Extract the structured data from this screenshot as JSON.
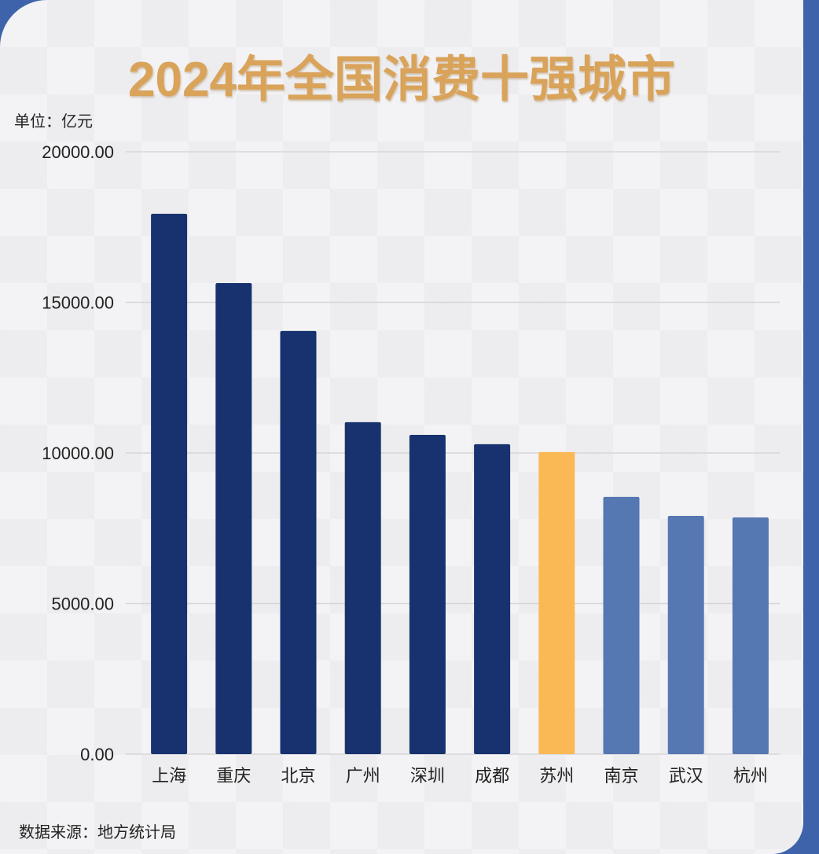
{
  "chart_data": {
    "type": "bar",
    "title": "2024年全国消费十强城市",
    "unit_label": "单位：亿元",
    "source": "数据来源：地方统计局",
    "categories": [
      "上海",
      "重庆",
      "北京",
      "广州",
      "深圳",
      "成都",
      "苏州",
      "南京",
      "武汉",
      "杭州"
    ],
    "values": [
      17940,
      15640,
      14050,
      11020,
      10600,
      10290,
      10030,
      8540,
      7910,
      7860
    ],
    "colors": [
      "#17326e",
      "#17326e",
      "#17326e",
      "#17326e",
      "#17326e",
      "#17326e",
      "#fbb955",
      "#5577b2",
      "#5577b2",
      "#5577b2"
    ],
    "yticks": [
      "0.00",
      "5000.00",
      "10000.00",
      "15000.00",
      "20000.00"
    ],
    "ylim": [
      0,
      20000
    ],
    "xlabel": "",
    "ylabel": "",
    "grid": true
  }
}
